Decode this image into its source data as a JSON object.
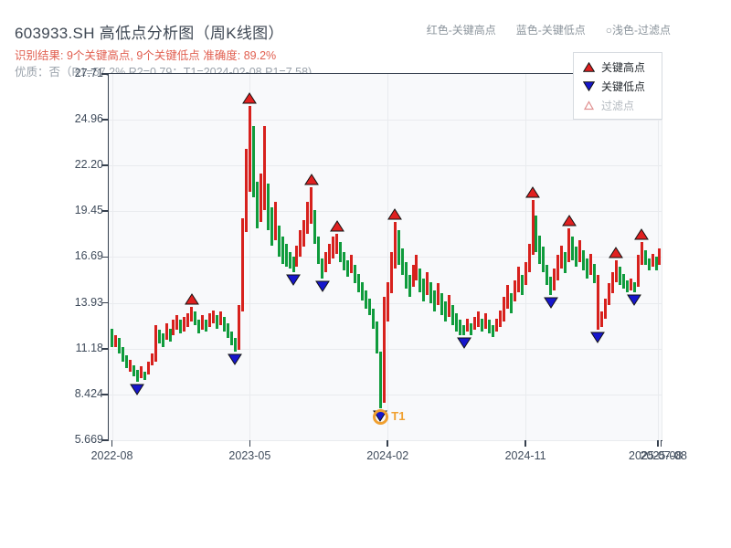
{
  "header": {
    "title": "603933.SH 高低点分析图（周K线图）",
    "subtitle_result": "识别结果: 9个关键高点, 9个关键低点  准确度: 89.2%",
    "subtitle_quality": "优质：否（R1=57.2%  R2=0.79；T1=2024-02-08 P1=7.58)",
    "legend": [
      {
        "label": "红色-关键高点"
      },
      {
        "label": "蓝色-关键低点"
      },
      {
        "label": "○浅色-过滤点"
      }
    ]
  },
  "chart_data": {
    "type": "bar",
    "subtype": "weekly-high-low-candlesticks",
    "title": "603933.SH 高低点分析图（周K线图）",
    "xlabel": "",
    "ylabel": "",
    "grid": true,
    "legend_position": "top-right-inside",
    "ylim": [
      5.669,
      27.71
    ],
    "y_ticks": [
      "27.71",
      "24.96",
      "22.20",
      "19.45",
      "16.69",
      "13.93",
      "11.18",
      "8.424",
      "5.669"
    ],
    "y_values": [
      27.71,
      24.96,
      22.2,
      19.45,
      16.69,
      13.93,
      11.18,
      8.424,
      5.669
    ],
    "x_ticks": [
      {
        "week": 0,
        "label": "2022-08"
      },
      {
        "week": 38,
        "label": "2023-05"
      },
      {
        "week": 76,
        "label": "2024-02"
      },
      {
        "week": 114,
        "label": "2024-11"
      },
      {
        "week": 150.5,
        "label": "2025-07-08"
      },
      {
        "week": 152,
        "label": "2025-08"
      }
    ],
    "legend_items": [
      {
        "label": "关键高点",
        "marker": "up-triangle",
        "color": "#e02020"
      },
      {
        "label": "关键低点",
        "marker": "down-triangle",
        "color": "#1616cc"
      },
      {
        "label": "过滤点",
        "marker": "open-triangle",
        "color": "#e09090"
      }
    ],
    "colors": {
      "up": "#d7211d",
      "down": "#0f9b3c",
      "key_high": "#e02020",
      "key_low": "#1616cc",
      "t1": "#f0a030",
      "grid": "#e9ebee",
      "axis": "#36404e",
      "plot_bg": "#f8f9fb"
    },
    "bars_format": [
      "high",
      "low",
      "up(1)/down(0)"
    ],
    "bars": [
      [
        12.4,
        11.3,
        0
      ],
      [
        12.0,
        11.3,
        1
      ],
      [
        11.8,
        10.9,
        0
      ],
      [
        11.3,
        10.4,
        0
      ],
      [
        10.8,
        10.0,
        0
      ],
      [
        10.5,
        9.8,
        1
      ],
      [
        10.2,
        9.5,
        0
      ],
      [
        9.9,
        9.2,
        0
      ],
      [
        10.1,
        9.4,
        1
      ],
      [
        9.8,
        9.3,
        0
      ],
      [
        10.4,
        9.6,
        1
      ],
      [
        10.9,
        10.2,
        1
      ],
      [
        12.6,
        10.4,
        1
      ],
      [
        12.3,
        11.5,
        0
      ],
      [
        12.1,
        11.3,
        0
      ],
      [
        12.7,
        11.7,
        1
      ],
      [
        12.4,
        11.6,
        0
      ],
      [
        12.9,
        12.0,
        1
      ],
      [
        13.2,
        12.3,
        1
      ],
      [
        12.9,
        12.1,
        0
      ],
      [
        13.1,
        12.2,
        1
      ],
      [
        13.3,
        12.5,
        1
      ],
      [
        13.7,
        12.8,
        1
      ],
      [
        13.4,
        12.6,
        0
      ],
      [
        12.9,
        12.1,
        0
      ],
      [
        13.2,
        12.3,
        1
      ],
      [
        12.9,
        12.2,
        0
      ],
      [
        13.3,
        12.5,
        1
      ],
      [
        13.5,
        12.7,
        1
      ],
      [
        13.2,
        12.4,
        0
      ],
      [
        13.4,
        12.6,
        1
      ],
      [
        13.1,
        12.2,
        0
      ],
      [
        12.7,
        11.8,
        0
      ],
      [
        12.2,
        11.4,
        0
      ],
      [
        11.8,
        11.0,
        0
      ],
      [
        13.8,
        11.1,
        1
      ],
      [
        19.0,
        13.4,
        1
      ],
      [
        23.2,
        18.2,
        1
      ],
      [
        25.8,
        20.6,
        1
      ],
      [
        24.6,
        20.3,
        0
      ],
      [
        21.2,
        18.4,
        0
      ],
      [
        21.7,
        18.8,
        1
      ],
      [
        24.6,
        19.5,
        1
      ],
      [
        21.1,
        18.3,
        0
      ],
      [
        19.7,
        17.4,
        0
      ],
      [
        20.0,
        17.7,
        1
      ],
      [
        18.6,
        16.7,
        0
      ],
      [
        17.9,
        16.3,
        0
      ],
      [
        17.5,
        16.1,
        0
      ],
      [
        17.0,
        16.0,
        0
      ],
      [
        16.7,
        15.8,
        0
      ],
      [
        17.4,
        16.1,
        1
      ],
      [
        18.3,
        16.7,
        1
      ],
      [
        18.9,
        17.3,
        1
      ],
      [
        20.0,
        18.1,
        1
      ],
      [
        20.9,
        18.7,
        1
      ],
      [
        19.5,
        17.5,
        0
      ],
      [
        17.9,
        16.3,
        0
      ],
      [
        16.6,
        15.4,
        0
      ],
      [
        17.0,
        15.8,
        1
      ],
      [
        17.5,
        16.3,
        1
      ],
      [
        17.9,
        16.6,
        1
      ],
      [
        18.1,
        16.9,
        1
      ],
      [
        17.6,
        16.4,
        0
      ],
      [
        17.0,
        15.9,
        0
      ],
      [
        16.5,
        15.5,
        0
      ],
      [
        16.8,
        15.7,
        1
      ],
      [
        16.2,
        15.1,
        0
      ],
      [
        15.7,
        14.6,
        0
      ],
      [
        15.2,
        14.1,
        0
      ],
      [
        14.7,
        13.6,
        0
      ],
      [
        14.2,
        13.2,
        0
      ],
      [
        13.6,
        12.4,
        0
      ],
      [
        12.8,
        10.9,
        0
      ],
      [
        11.0,
        7.58,
        0
      ],
      [
        14.3,
        7.9,
        1
      ],
      [
        15.2,
        12.8,
        1
      ],
      [
        17.0,
        14.5,
        1
      ],
      [
        18.8,
        16.0,
        1
      ],
      [
        18.3,
        16.2,
        0
      ],
      [
        17.2,
        15.6,
        0
      ],
      [
        16.4,
        14.8,
        0
      ],
      [
        15.6,
        14.3,
        0
      ],
      [
        16.2,
        14.9,
        1
      ],
      [
        16.8,
        15.3,
        1
      ],
      [
        16.0,
        14.6,
        0
      ],
      [
        15.4,
        14.0,
        0
      ],
      [
        15.8,
        14.4,
        1
      ],
      [
        15.2,
        13.9,
        0
      ],
      [
        14.7,
        13.4,
        0
      ],
      [
        15.1,
        13.8,
        1
      ],
      [
        14.5,
        13.2,
        0
      ],
      [
        14.0,
        12.8,
        0
      ],
      [
        14.4,
        13.1,
        1
      ],
      [
        13.8,
        12.6,
        0
      ],
      [
        13.3,
        12.2,
        0
      ],
      [
        12.9,
        12.0,
        0
      ],
      [
        12.6,
        12.0,
        0
      ],
      [
        13.0,
        12.2,
        1
      ],
      [
        12.7,
        12.0,
        0
      ],
      [
        13.1,
        12.3,
        1
      ],
      [
        13.4,
        12.5,
        1
      ],
      [
        13.0,
        12.2,
        0
      ],
      [
        13.3,
        12.4,
        1
      ],
      [
        12.9,
        12.1,
        0
      ],
      [
        12.6,
        11.9,
        0
      ],
      [
        13.0,
        12.2,
        1
      ],
      [
        13.5,
        12.5,
        1
      ],
      [
        14.3,
        12.8,
        1
      ],
      [
        15.0,
        13.6,
        1
      ],
      [
        14.5,
        13.3,
        0
      ],
      [
        15.3,
        14.0,
        1
      ],
      [
        16.1,
        14.6,
        1
      ],
      [
        15.6,
        14.4,
        0
      ],
      [
        16.4,
        15.0,
        1
      ],
      [
        17.5,
        15.8,
        1
      ],
      [
        20.1,
        16.8,
        1
      ],
      [
        19.2,
        17.0,
        0
      ],
      [
        18.0,
        16.3,
        0
      ],
      [
        17.3,
        15.8,
        0
      ],
      [
        16.2,
        15.0,
        0
      ],
      [
        15.5,
        14.4,
        0
      ],
      [
        16.0,
        14.7,
        1
      ],
      [
        16.8,
        15.3,
        1
      ],
      [
        17.4,
        16.0,
        1
      ],
      [
        17.0,
        15.7,
        0
      ],
      [
        18.4,
        16.4,
        1
      ],
      [
        17.9,
        16.5,
        0
      ],
      [
        17.3,
        16.1,
        0
      ],
      [
        17.7,
        16.4,
        1
      ],
      [
        17.1,
        15.9,
        0
      ],
      [
        16.6,
        15.4,
        0
      ],
      [
        16.9,
        15.6,
        1
      ],
      [
        16.3,
        15.1,
        0
      ],
      [
        15.6,
        12.3,
        1
      ],
      [
        13.4,
        12.5,
        1
      ],
      [
        14.2,
        13.0,
        1
      ],
      [
        15.1,
        13.8,
        1
      ],
      [
        15.8,
        14.5,
        1
      ],
      [
        16.5,
        15.2,
        1
      ],
      [
        16.1,
        15.0,
        0
      ],
      [
        15.7,
        14.8,
        0
      ],
      [
        15.3,
        14.6,
        0
      ],
      [
        15.4,
        14.7,
        1
      ],
      [
        15.2,
        14.6,
        0
      ],
      [
        16.8,
        14.9,
        1
      ],
      [
        17.6,
        16.2,
        1
      ],
      [
        17.1,
        16.2,
        0
      ],
      [
        16.6,
        15.9,
        0
      ],
      [
        16.9,
        16.1,
        1
      ],
      [
        16.7,
        15.9,
        0
      ],
      [
        17.2,
        16.2,
        1
      ]
    ],
    "key_highs": [
      {
        "week": 22,
        "price": 13.7
      },
      {
        "week": 38,
        "price": 25.8
      },
      {
        "week": 55,
        "price": 20.9
      },
      {
        "week": 62,
        "price": 18.1
      },
      {
        "week": 78,
        "price": 18.8
      },
      {
        "week": 116,
        "price": 20.1
      },
      {
        "week": 126,
        "price": 18.4
      },
      {
        "week": 139,
        "price": 16.5
      },
      {
        "week": 146,
        "price": 17.6
      }
    ],
    "key_lows": [
      {
        "week": 7,
        "price": 9.2
      },
      {
        "week": 34,
        "price": 11.0
      },
      {
        "week": 50,
        "price": 15.8
      },
      {
        "week": 58,
        "price": 15.4
      },
      {
        "week": 74,
        "price": 7.58,
        "label": "T1"
      },
      {
        "week": 97,
        "price": 12.0
      },
      {
        "week": 121,
        "price": 14.4
      },
      {
        "week": 134,
        "price": 12.3
      },
      {
        "week": 144,
        "price": 14.6
      }
    ]
  }
}
